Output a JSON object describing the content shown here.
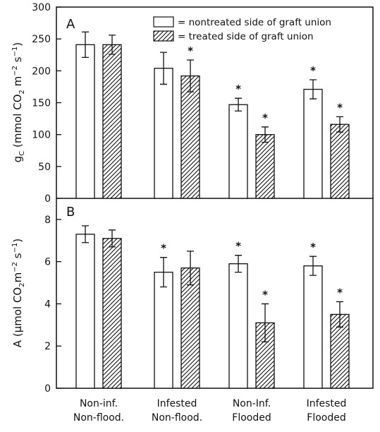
{
  "colors": {
    "ink": "#111111",
    "background": "#ffffff"
  },
  "legend": {
    "open_label": "= nontreated side of graft union",
    "hatched_label": "= treated side of graft union"
  },
  "chart_data": [
    {
      "type": "bar",
      "panel_label": "A",
      "ylabel": "g_C (mmol CO_2 m^-2 s^-1)",
      "ylim": [
        0,
        300
      ],
      "yticks": [
        0,
        50,
        100,
        150,
        200,
        250,
        300
      ],
      "categories": [
        "Non-inf. Non-flood.",
        "Infested Non-flood.",
        "Non-inf. Flooded",
        "Infested Flooded"
      ],
      "series": [
        {
          "name": "= nontreated side of graft union",
          "pattern": "open",
          "values": [
            241,
            204,
            147,
            171
          ],
          "errors": [
            20,
            25,
            10,
            15
          ],
          "significant": [
            false,
            false,
            true,
            true
          ]
        },
        {
          "name": "= treated side of graft union",
          "pattern": "hatched",
          "values": [
            241,
            192,
            100,
            116
          ],
          "errors": [
            15,
            25,
            12,
            12
          ],
          "significant": [
            false,
            true,
            true,
            true
          ]
        }
      ]
    },
    {
      "type": "bar",
      "panel_label": "B",
      "ylabel": "A (μmol CO_2 m^-2 s^-1)",
      "ylim": [
        0,
        9
      ],
      "yticks": [
        0,
        2,
        4,
        6,
        8
      ],
      "categories": [
        "Non-inf. Non-flood.",
        "Infested Non-flood.",
        "Non-inf. Flooded",
        "Infested Flooded"
      ],
      "series": [
        {
          "name": "= nontreated side of graft union",
          "pattern": "open",
          "values": [
            7.3,
            5.5,
            5.9,
            5.8
          ],
          "errors": [
            0.4,
            0.7,
            0.4,
            0.45
          ],
          "significant": [
            false,
            true,
            true,
            true
          ]
        },
        {
          "name": "= treated side of graft union",
          "pattern": "hatched",
          "values": [
            7.1,
            5.7,
            3.1,
            3.5
          ],
          "errors": [
            0.4,
            0.8,
            0.9,
            0.6
          ],
          "significant": [
            false,
            false,
            true,
            true
          ]
        }
      ]
    }
  ],
  "x_categories": [
    {
      "line1": "Non-inf.",
      "line2": "Non-flood."
    },
    {
      "line1": "Infested",
      "line2": "Non-flood."
    },
    {
      "line1": "Non-Inf.",
      "line2": "Flooded"
    },
    {
      "line1": "Infested",
      "line2": "Flooded"
    }
  ]
}
